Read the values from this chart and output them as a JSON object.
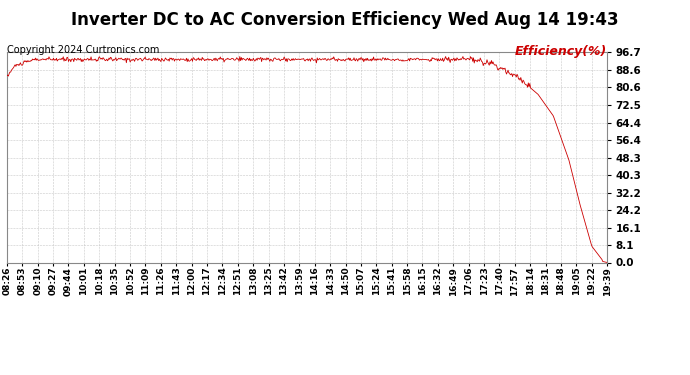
{
  "title": "Inverter DC to AC Conversion Efficiency Wed Aug 14 19:43",
  "copyright": "Copyright 2024 Curtronics.com",
  "legend_label": "Efficiency(%)",
  "background_color": "#ffffff",
  "plot_bg_color": "#ffffff",
  "grid_color": "#bbbbbb",
  "line_color": "#cc0000",
  "yticks": [
    0.0,
    8.1,
    16.1,
    24.2,
    32.2,
    40.3,
    48.3,
    56.4,
    64.4,
    72.5,
    80.6,
    88.6,
    96.7
  ],
  "ymin": 0.0,
  "ymax": 96.7,
  "xtick_labels": [
    "08:26",
    "08:53",
    "09:10",
    "09:27",
    "09:44",
    "10:01",
    "10:18",
    "10:35",
    "10:52",
    "11:09",
    "11:26",
    "11:43",
    "12:00",
    "12:17",
    "12:34",
    "12:51",
    "13:08",
    "13:25",
    "13:42",
    "13:59",
    "14:16",
    "14:33",
    "14:50",
    "15:07",
    "15:24",
    "15:41",
    "15:58",
    "16:15",
    "16:32",
    "16:49",
    "17:06",
    "17:23",
    "17:40",
    "17:57",
    "18:14",
    "18:31",
    "18:48",
    "19:05",
    "19:22",
    "19:39"
  ],
  "title_fontsize": 12,
  "copyright_fontsize": 7,
  "legend_fontsize": 9,
  "tick_fontsize": 6.5,
  "ytick_fontsize": 7.5
}
